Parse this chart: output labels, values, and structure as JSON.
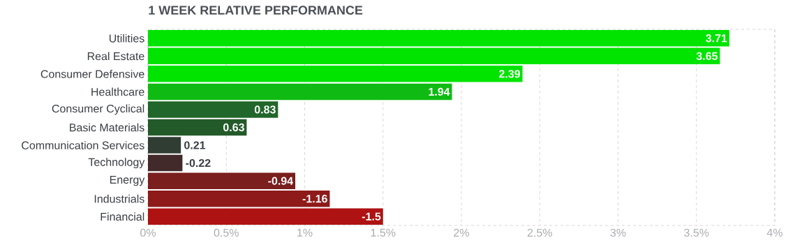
{
  "chart_data": {
    "type": "bar",
    "orientation": "horizontal",
    "title": "1 WEEK RELATIVE PERFORMANCE",
    "categories": [
      "Utilities",
      "Real Estate",
      "Consumer Defensive",
      "Healthcare",
      "Consumer Cyclical",
      "Basic Materials",
      "Communication Services",
      "Technology",
      "Energy",
      "Industrials",
      "Financial"
    ],
    "values": [
      3.71,
      3.65,
      2.39,
      1.94,
      0.83,
      0.63,
      0.21,
      -0.22,
      -0.94,
      -1.16,
      -1.5
    ],
    "base": [
      0,
      0,
      0,
      0,
      0,
      0,
      0,
      0.22,
      0.94,
      1.16,
      1.5
    ],
    "colors": [
      "#00e400",
      "#00e400",
      "#00e400",
      "#0fbb12",
      "#21662a",
      "#235a29",
      "#2f3d32",
      "#432a2a",
      "#7a1e1e",
      "#8e1a1a",
      "#ae1212"
    ],
    "data_labels": true,
    "xlim": [
      0,
      4
    ],
    "xticks": [
      {
        "value": 0,
        "label": "0%"
      },
      {
        "value": 0.5,
        "label": "0.5%"
      },
      {
        "value": 1,
        "label": "1%"
      },
      {
        "value": 1.5,
        "label": "1.5%"
      },
      {
        "value": 2,
        "label": "2%"
      },
      {
        "value": 2.5,
        "label": "2.5%"
      },
      {
        "value": 3,
        "label": "3%"
      },
      {
        "value": 3.5,
        "label": "3.5%"
      },
      {
        "value": 4,
        "label": "4%"
      }
    ],
    "grid": "x"
  }
}
